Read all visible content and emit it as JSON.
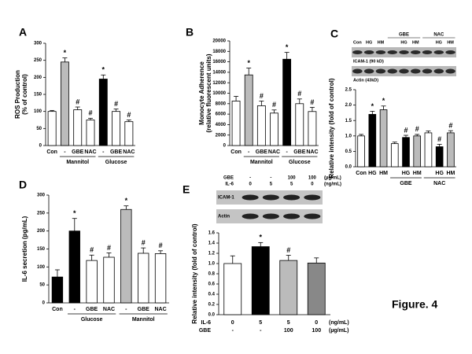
{
  "chart_data": [
    {
      "type": "bar",
      "panel": "A",
      "y_label": [
        "ROS Production",
        "(% of control)"
      ],
      "categories": [
        "Con",
        "-",
        "GBE",
        "NAC",
        "-",
        "GBE",
        "NAC"
      ],
      "groups": [
        "Mannitol",
        "Glucose"
      ],
      "values": [
        100,
        245,
        105,
        75,
        195,
        100,
        70
      ],
      "errors": [
        3,
        12,
        8,
        5,
        12,
        7,
        5
      ],
      "marks": [
        null,
        "*",
        "#",
        "#",
        "*",
        "#",
        "#"
      ],
      "colors": [
        "#ffffff",
        "#bbbbbb",
        "#ffffff",
        "#ffffff",
        "#000000",
        "#ffffff",
        "#ffffff"
      ],
      "ylim": [
        0,
        300
      ],
      "yticks": [
        0,
        50,
        100,
        150,
        200,
        250,
        300
      ]
    },
    {
      "type": "bar",
      "panel": "B",
      "y_label": [
        "Monocyte Adherence",
        "(relative fluorescent units)"
      ],
      "categories": [
        "Con",
        "-",
        "GBE",
        "NAC",
        "-",
        "GBE",
        "NAC"
      ],
      "groups": [
        "Mannitol",
        "Glucose"
      ],
      "values": [
        8500,
        13500,
        7600,
        6200,
        16500,
        8000,
        6500
      ],
      "errors": [
        900,
        1300,
        900,
        600,
        1300,
        900,
        800
      ],
      "marks": [
        null,
        "*",
        "#",
        "#",
        "*",
        "#",
        "#"
      ],
      "colors": [
        "#ffffff",
        "#bbbbbb",
        "#ffffff",
        "#ffffff",
        "#000000",
        "#ffffff",
        "#ffffff"
      ],
      "ylim": [
        0,
        20000
      ],
      "yticks": [
        0,
        2000,
        4000,
        6000,
        8000,
        10000,
        12000,
        14000,
        16000,
        18000,
        20000
      ]
    },
    {
      "type": "bar",
      "panel": "C",
      "y_label": [
        "Relative intensity (fold of control)"
      ],
      "categories": [
        "Con",
        "HG",
        "HM",
        null,
        "HG",
        "HM",
        null,
        "HG",
        "HM"
      ],
      "groups": [
        "GBE",
        "NAC"
      ],
      "values": [
        1.0,
        1.7,
        1.85,
        0.75,
        0.95,
        1.0,
        1.1,
        0.65,
        1.1
      ],
      "errors": [
        0.05,
        0.1,
        0.12,
        0.05,
        0.07,
        0.05,
        0.06,
        0.08,
        0.07
      ],
      "marks": [
        null,
        "*",
        "*",
        null,
        "#",
        "#",
        null,
        "#",
        "#"
      ],
      "colors": [
        "#ffffff",
        "#000000",
        "#bbbbbb",
        "#ffffff",
        "#000000",
        "#bbbbbb",
        "#ffffff",
        "#000000",
        "#bbbbbb"
      ],
      "ylim": [
        0,
        2.5
      ],
      "yticks": [
        {
          "value": 0,
          "label": "0.0"
        },
        0.5,
        {
          "value": 1,
          "label": "1.0"
        },
        1.5,
        {
          "value": 2,
          "label": "2.0"
        },
        2.5
      ],
      "blot": {
        "lanes": [
          "Con",
          "HG",
          "HM",
          null,
          "HG",
          "HM",
          null,
          "HG",
          "HM"
        ],
        "groups": [
          "GBE",
          "NAC"
        ],
        "bands": [
          "ICAM-1 (90 kD)",
          "Actin (43kD)"
        ]
      }
    },
    {
      "type": "bar",
      "panel": "D",
      "y_label": [
        "IL-6 secretion (pg/mL)"
      ],
      "categories": [
        "Con",
        "-",
        "GBE",
        "NAC",
        "-",
        "GBE",
        "NAC"
      ],
      "groups": [
        "Glucose",
        "Mannitol"
      ],
      "values": [
        72,
        200,
        118,
        127,
        260,
        138,
        137
      ],
      "errors": [
        20,
        35,
        15,
        12,
        10,
        15,
        8
      ],
      "marks": [
        null,
        "*",
        "#",
        "#",
        "*",
        "#",
        "#"
      ],
      "colors": [
        "#000000",
        "#000000",
        "#ffffff",
        "#ffffff",
        "#bbbbbb",
        "#ffffff",
        "#ffffff"
      ],
      "ylim": [
        0,
        300
      ],
      "yticks": [
        0,
        50,
        100,
        150,
        200,
        250,
        300
      ]
    },
    {
      "type": "bar",
      "panel": "E",
      "y_label": [
        "Relative intensity (fold of control)"
      ],
      "values": [
        1.0,
        1.33,
        1.06,
        1.01
      ],
      "errors": [
        0.15,
        0.08,
        0.1,
        0.1
      ],
      "marks": [
        null,
        "*",
        "#",
        null
      ],
      "colors": [
        "#ffffff",
        "#000000",
        "#bbbbbb",
        "#888888"
      ],
      "ylim": [
        0,
        1.6
      ],
      "yticks": [
        {
          "value": 0,
          "label": "0.0"
        },
        0.2,
        0.4,
        0.6,
        0.8,
        {
          "value": 1,
          "label": "1.0"
        },
        1.2,
        1.4,
        1.6
      ],
      "table": [
        {
          "label": "IL-6",
          "cells": [
            "0",
            "5",
            "5",
            "0"
          ],
          "unit": "(ng/mL)"
        },
        {
          "label": "GBE",
          "cells": [
            "-",
            "-",
            "100",
            "100"
          ],
          "unit": "(µg/mL)"
        }
      ],
      "blot": {
        "header": [
          {
            "label": "GBE",
            "cells": [
              "-",
              "-",
              "100",
              "100"
            ],
            "unit": "(µg/mL)"
          },
          {
            "label": "IL-6",
            "cells": [
              "0",
              "5",
              "5",
              "0"
            ],
            "unit": "(ng/mL)"
          }
        ],
        "bands": [
          "ICAM-1",
          "Actin"
        ]
      }
    }
  ],
  "caption": "Figure. 4"
}
